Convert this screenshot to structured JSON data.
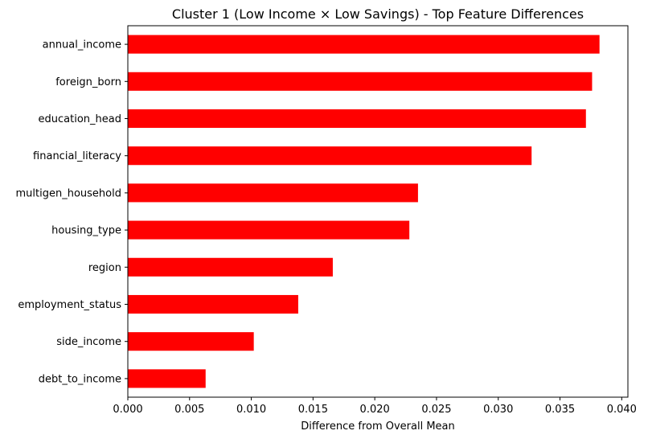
{
  "chart_data": {
    "type": "bar",
    "orientation": "horizontal",
    "title": "Cluster 1 (Low Income × Low Savings) - Top Feature Differences",
    "xlabel": "Difference from Overall Mean",
    "ylabel": "",
    "categories": [
      "annual_income",
      "foreign_born",
      "education_head",
      "financial_literacy",
      "multigen_household",
      "housing_type",
      "region",
      "employment_status",
      "side_income",
      "debt_to_income"
    ],
    "values": [
      0.0382,
      0.0376,
      0.0371,
      0.0327,
      0.0235,
      0.0228,
      0.0166,
      0.0138,
      0.0102,
      0.0063
    ],
    "xlim": [
      0.0,
      0.0405
    ],
    "xticks": [
      "0.000",
      "0.005",
      "0.010",
      "0.015",
      "0.020",
      "0.025",
      "0.030",
      "0.035",
      "0.040"
    ],
    "xtick_values": [
      0.0,
      0.005,
      0.01,
      0.015,
      0.02,
      0.025,
      0.03,
      0.035,
      0.04
    ],
    "bar_color": "#ff0000",
    "grid": false,
    "legend": "none"
  }
}
